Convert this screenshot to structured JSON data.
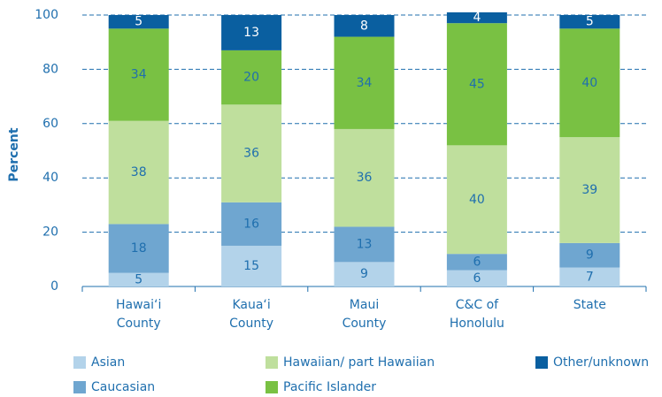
{
  "chart_data": {
    "type": "stacked_bar",
    "y_label": "Percent",
    "categories": [
      [
        "Hawai‘i",
        "County"
      ],
      [
        "Kaua‘i",
        "County"
      ],
      [
        "Maui",
        "County"
      ],
      [
        "C&C of",
        "Honolulu"
      ],
      [
        "State"
      ]
    ],
    "series": [
      {
        "name": "Asian",
        "color": "#b3d3ea",
        "values": [
          5,
          15,
          9,
          6,
          7
        ]
      },
      {
        "name": "Caucasian",
        "color": "#6fa6d0",
        "values": [
          18,
          16,
          13,
          6,
          9
        ]
      },
      {
        "name": "Hawaiian/ part Hawaiian",
        "color": "#bfdf9d",
        "values": [
          38,
          36,
          36,
          40,
          39
        ]
      },
      {
        "name": "Pacific Islander",
        "color": "#79c143",
        "values": [
          34,
          20,
          34,
          45,
          40
        ]
      },
      {
        "name": "Other/unknown",
        "color": "#0a5fa0",
        "values": [
          5,
          13,
          8,
          4,
          5
        ]
      }
    ],
    "ylim": [
      0,
      100
    ],
    "yticks": [
      0,
      20,
      40,
      60,
      80,
      100
    ],
    "grid": true
  }
}
